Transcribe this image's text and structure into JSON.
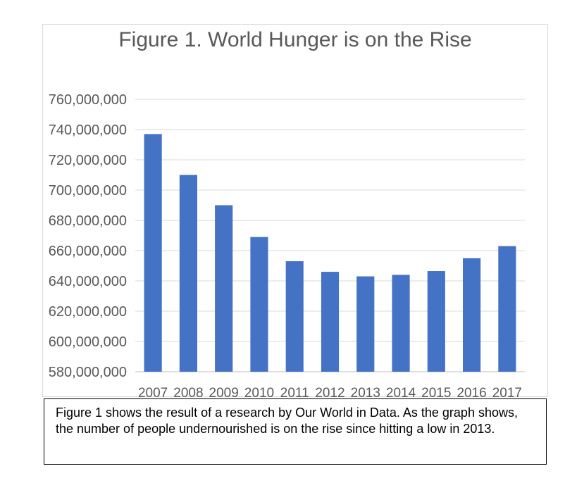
{
  "chart_data": {
    "type": "bar",
    "title": "Figure 1. World Hunger is on the Rise",
    "categories": [
      "2007",
      "2008",
      "2009",
      "2010",
      "2011",
      "2012",
      "2013",
      "2014",
      "2015",
      "2016",
      "2017"
    ],
    "values": [
      737000000,
      710000000,
      690000000,
      669000000,
      653000000,
      646000000,
      643000000,
      644000000,
      646500000,
      655000000,
      663000000
    ],
    "ylim": [
      580000000,
      760000000
    ],
    "yticks": [
      580000000,
      600000000,
      620000000,
      640000000,
      660000000,
      680000000,
      700000000,
      720000000,
      740000000,
      760000000
    ],
    "ytick_labels": [
      "580,000,000",
      "600,000,000",
      "620,000,000",
      "640,000,000",
      "660,000,000",
      "680,000,000",
      "700,000,000",
      "720,000,000",
      "740,000,000",
      "760,000,000"
    ],
    "xlabel": "",
    "ylabel": "",
    "grid": true,
    "bar_color": "#4472c4",
    "grid_color": "#d9d9d9",
    "text_color": "#595959"
  },
  "caption": {
    "text": "Figure 1 shows the result of a research by Our World in Data. As the graph shows, the number of people undernourished is on the rise since hitting a low in 2013."
  }
}
